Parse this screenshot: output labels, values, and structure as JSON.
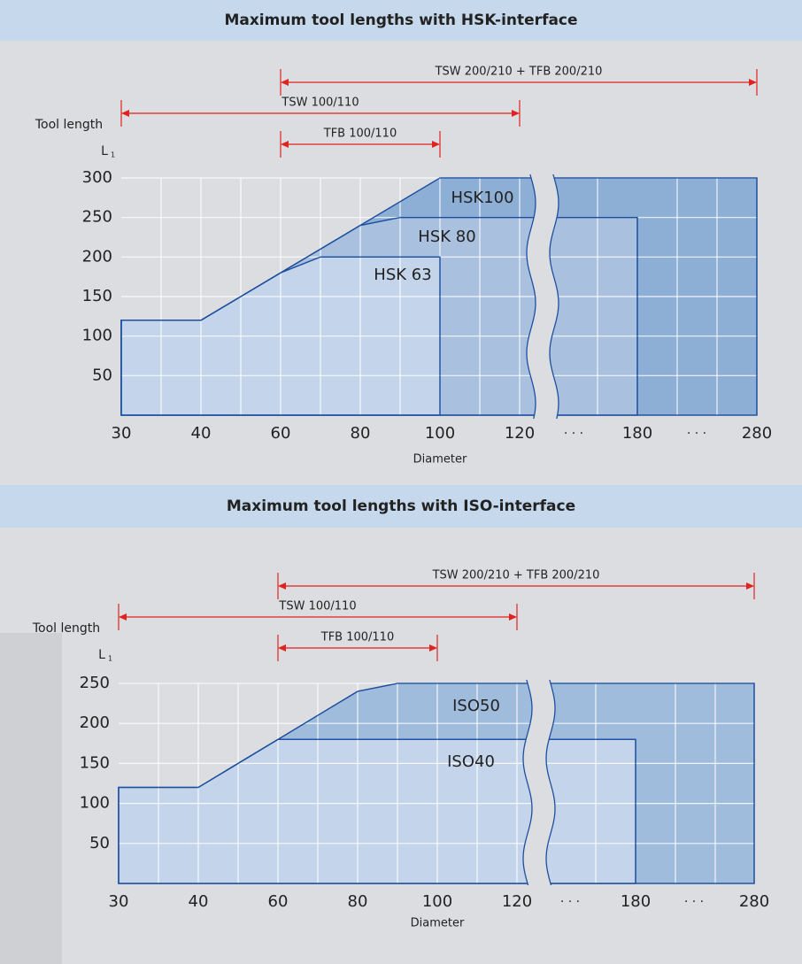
{
  "chart_data": [
    {
      "type": "area",
      "title": "Maximum tool lengths with HSK-interface",
      "y_label": "Tool length",
      "y_label_main": "L",
      "y_label_sub": "1",
      "x_label": "Diameter",
      "ranges": [
        {
          "label": "TSW 200/210 + TFB 200/210",
          "from": 60,
          "to": 280
        },
        {
          "label": "TSW 100/110",
          "from": 30,
          "to": 120
        },
        {
          "label": "TFB 100/110",
          "from": 60,
          "to": 100
        }
      ],
      "xticks": [
        30,
        40,
        60,
        80,
        100,
        120,
        180,
        280
      ],
      "break_label": "· · ·",
      "ylim": [
        0,
        300
      ],
      "yticks": [
        50,
        100,
        150,
        200,
        250,
        300
      ],
      "grid": true,
      "series": [
        {
          "name": "HSK100",
          "color": "#8dafd5",
          "x": [
            30,
            40,
            60,
            100,
            280
          ],
          "y": [
            120,
            120,
            180,
            300,
            300
          ]
        },
        {
          "name": "HSK 80",
          "color": "#a9c1de",
          "x": [
            30,
            40,
            60,
            80,
            90,
            180
          ],
          "y": [
            120,
            120,
            180,
            240,
            250,
            250
          ]
        },
        {
          "name": "HSK 63",
          "color": "#c4d4ea",
          "x": [
            30,
            40,
            60,
            70,
            100
          ],
          "y": [
            120,
            120,
            180,
            200,
            200
          ]
        }
      ]
    },
    {
      "type": "area",
      "title": "Maximum tool lengths with ISO-interface",
      "y_label": "Tool length",
      "y_label_main": "L",
      "y_label_sub": "1",
      "x_label": "Diameter",
      "ranges": [
        {
          "label": "TSW 200/210 + TFB 200/210",
          "from": 60,
          "to": 280
        },
        {
          "label": "TSW 100/110",
          "from": 30,
          "to": 120
        },
        {
          "label": "TFB 100/110",
          "from": 60,
          "to": 100
        }
      ],
      "xticks": [
        30,
        40,
        60,
        80,
        100,
        120,
        180,
        280
      ],
      "break_label": "· · ·",
      "ylim": [
        0,
        250
      ],
      "yticks": [
        50,
        100,
        150,
        200,
        250
      ],
      "grid": true,
      "series": [
        {
          "name": "ISO50",
          "color": "#a0bcdc",
          "x": [
            30,
            40,
            60,
            80,
            90,
            280
          ],
          "y": [
            120,
            120,
            180,
            240,
            250,
            250
          ]
        },
        {
          "name": "ISO40",
          "color": "#c4d4ea",
          "x": [
            30,
            40,
            60,
            180
          ],
          "y": [
            120,
            120,
            180,
            180
          ]
        }
      ]
    }
  ]
}
